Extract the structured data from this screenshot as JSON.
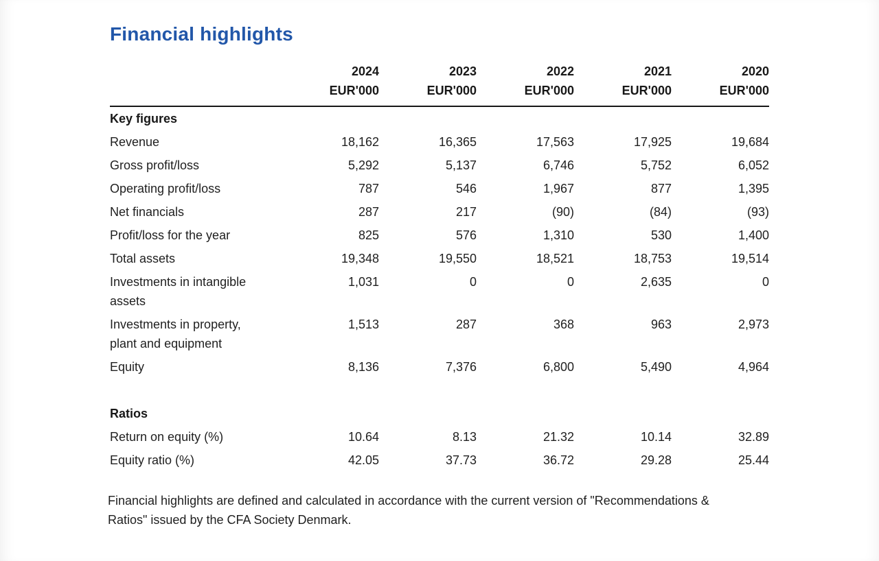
{
  "page": {
    "title": "Financial highlights"
  },
  "colors": {
    "title_blue": "#2257a9",
    "body_text": "#1f1f1f",
    "rule": "#161616"
  },
  "table": {
    "years": [
      "2024",
      "2023",
      "2022",
      "2021",
      "2020"
    ],
    "unit": "EUR'000",
    "key_figures": {
      "title": "Key figures",
      "rows": [
        {
          "label": "Revenue",
          "values": [
            "18,162",
            "16,365",
            "17,563",
            "17,925",
            "19,684"
          ]
        },
        {
          "label": "Gross profit/loss",
          "values": [
            "5,292",
            "5,137",
            "6,746",
            "5,752",
            "6,052"
          ]
        },
        {
          "label": "Operating profit/loss",
          "values": [
            "787",
            "546",
            "1,967",
            "877",
            "1,395"
          ]
        },
        {
          "label": "Net financials",
          "values": [
            "287",
            "217",
            "(90)",
            "(84)",
            "(93)"
          ]
        },
        {
          "label": "Profit/loss for the year",
          "values": [
            "825",
            "576",
            "1,310",
            "530",
            "1,400"
          ]
        },
        {
          "label": "Total assets",
          "values": [
            "19,348",
            "19,550",
            "18,521",
            "18,753",
            "19,514"
          ]
        },
        {
          "label": "Investments in intangible\nassets",
          "values": [
            "1,031",
            "0",
            "0",
            "2,635",
            "0"
          ]
        },
        {
          "label": "Investments in property,\nplant and equipment",
          "values": [
            "1,513",
            "287",
            "368",
            "963",
            "2,973"
          ]
        },
        {
          "label": "Equity",
          "values": [
            "8,136",
            "7,376",
            "6,800",
            "5,490",
            "4,964"
          ]
        }
      ]
    },
    "ratios": {
      "title": "Ratios",
      "rows": [
        {
          "label": "Return on equity (%)",
          "values": [
            "10.64",
            "8.13",
            "21.32",
            "10.14",
            "32.89"
          ]
        },
        {
          "label": "Equity ratio (%)",
          "values": [
            "42.05",
            "37.73",
            "36.72",
            "29.28",
            "25.44"
          ]
        }
      ]
    }
  },
  "footnote": "Financial highlights are defined and calculated in accordance with the current version of \"Recommendations &\nRatios\" issued by the CFA Society Denmark."
}
